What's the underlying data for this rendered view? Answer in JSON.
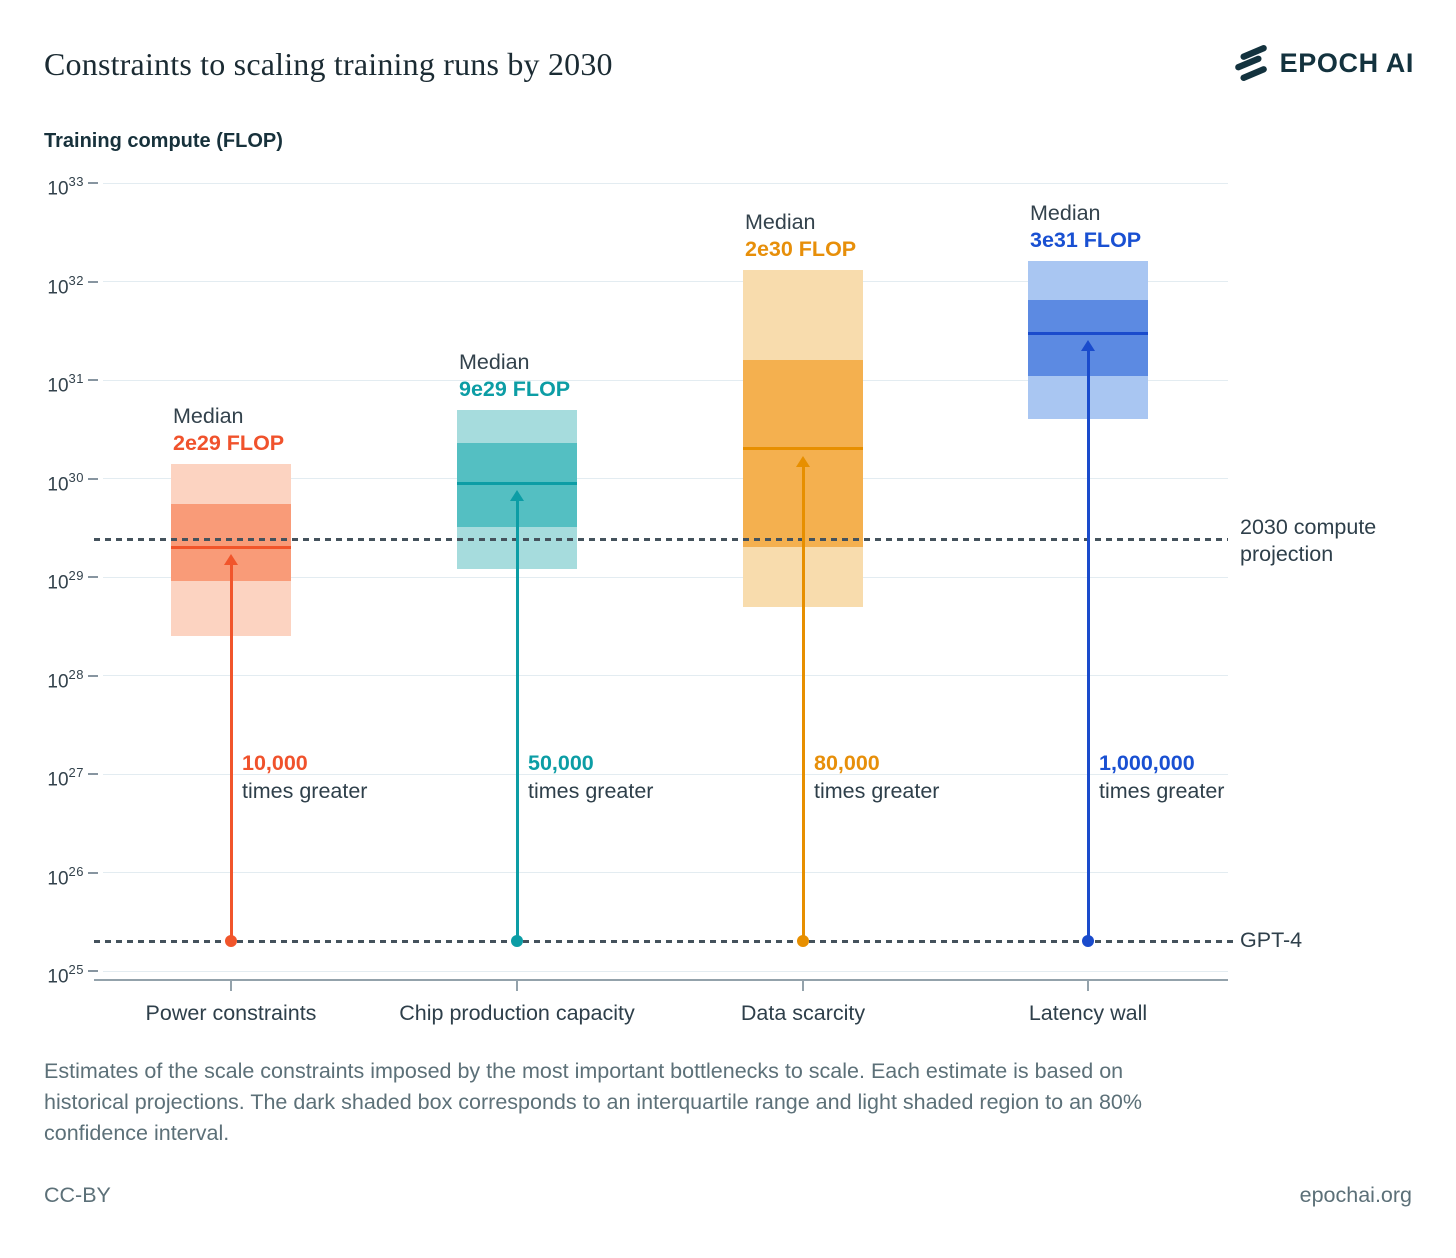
{
  "header": {
    "title": "Constraints to scaling training runs by 2030",
    "logo_text": "EPOCH AI"
  },
  "axis": {
    "y_label": "Training compute (FLOP)",
    "tick_base": "10",
    "tick_exponents": [
      33,
      32,
      31,
      30,
      29,
      28,
      27,
      26,
      25
    ]
  },
  "chart_data": {
    "type": "box-range",
    "title": "Constraints to scaling training runs by 2030",
    "ylabel": "Training compute (FLOP)",
    "y_scale": "log10",
    "ylim": [
      1e+25,
      1e+33
    ],
    "grid": true,
    "categories": [
      "Power constraints",
      "Chip production capacity",
      "Data scarcity",
      "Latency wall"
    ],
    "series": [
      {
        "category": "Power constraints",
        "median": 2e+29,
        "median_label": "2e29 FLOP",
        "iqr": [
          9e+28,
          5.5e+29
        ],
        "ci80": [
          2.5e+28,
          1.4e+30
        ],
        "times_greater": "10,000",
        "colors": {
          "light": "#FCD3C1",
          "dark": "#F99B78",
          "line": "#F1552B",
          "text": "#F0522C"
        }
      },
      {
        "category": "Chip production capacity",
        "median": 9e+29,
        "median_label": "9e29 FLOP",
        "iqr": [
          3.2e+29,
          2.3e+30
        ],
        "ci80": [
          1.2e+29,
          5e+30
        ],
        "times_greater": "50,000",
        "colors": {
          "light": "#A6DCDD",
          "dark": "#54BFC2",
          "line": "#0C9DA5",
          "text": "#0C9DA5"
        }
      },
      {
        "category": "Data scarcity",
        "median": 2e+30,
        "median_label": "2e30 FLOP",
        "iqr": [
          2e+29,
          1.6e+31
        ],
        "ci80": [
          5e+28,
          1.3e+32
        ],
        "times_greater": "80,000",
        "colors": {
          "light": "#F8DCAD",
          "dark": "#F4B04F",
          "line": "#E78F00",
          "text": "#E78F0A"
        }
      },
      {
        "category": "Latency wall",
        "median": 3e+31,
        "median_label": "3e31 FLOP",
        "iqr": [
          1.1e+31,
          6.5e+31
        ],
        "ci80": [
          4e+30,
          1.6e+32
        ],
        "times_greater": "1,000,000",
        "colors": {
          "light": "#A9C6F2",
          "dark": "#5C8AE2",
          "line": "#1A4BCC",
          "text": "#1950D2"
        }
      }
    ],
    "reference_lines": [
      {
        "id": "projection-2030",
        "label": "2030 compute projection",
        "value": 2.4e+29
      },
      {
        "id": "gpt4",
        "label": "GPT-4",
        "value": 2e+25
      }
    ],
    "annotations": {
      "median_word": "Median",
      "times_greater_suffix": "times greater"
    }
  },
  "caption_lines": [
    "Estimates of the scale constraints imposed by the most important bottlenecks to scale. Each estimate is based on",
    "historical projections. The dark shaded box corresponds to an interquartile range and light shaded region to an 80%",
    "confidence interval."
  ],
  "footer": {
    "left": "CC-BY",
    "right": "epochai.org"
  }
}
